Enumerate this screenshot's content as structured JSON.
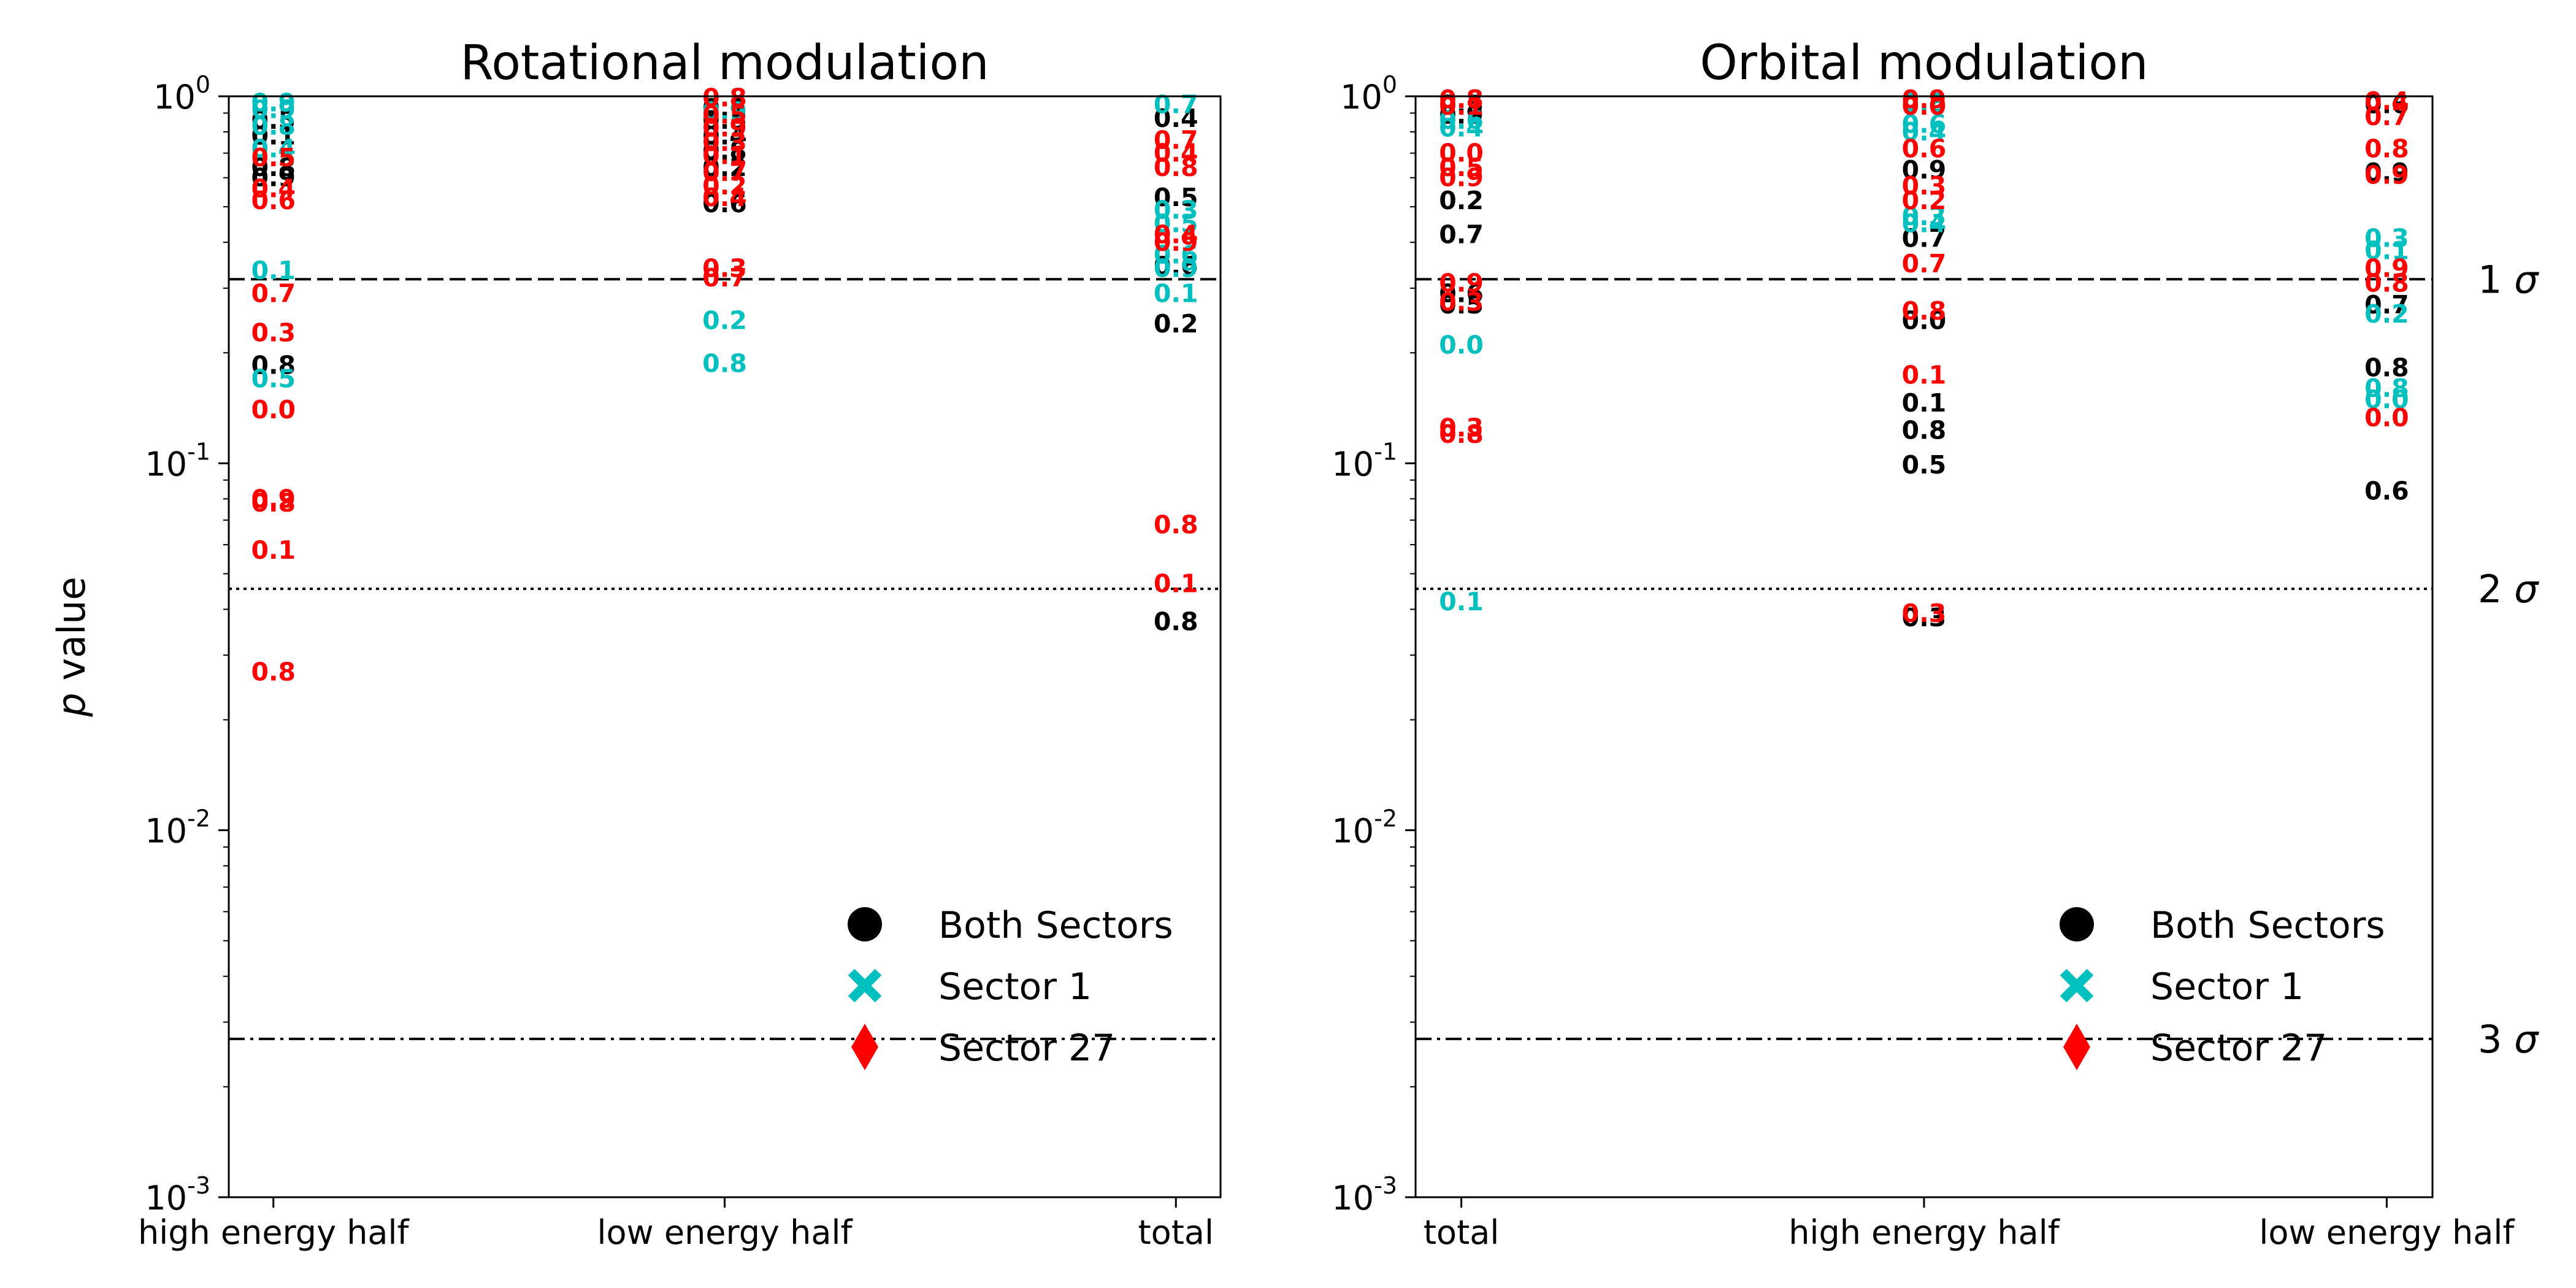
{
  "sigma_labels": [
    "1",
    "2",
    "3"
  ],
  "sigma_symbol": "σ",
  "legend": [
    {
      "label": "Both Sectors",
      "color": "#000000",
      "marker": "circle"
    },
    {
      "label": "Sector 1",
      "color": "#00bfbf",
      "marker": "x"
    },
    {
      "label": "Sector 27",
      "color": "#ff0000",
      "marker": "diamond"
    }
  ],
  "chart_data": [
    {
      "type": "scatter",
      "title": "Rotational modulation",
      "ylabel": "p value",
      "yscale": "log",
      "ylim": [
        0.001,
        1
      ],
      "y_tick_labels": [
        "10^0",
        "10^-1",
        "10^-2",
        "10^-3"
      ],
      "categories": [
        "high energy half",
        "low energy half",
        "total"
      ],
      "thresholds": [
        {
          "sigma": 1,
          "p": 0.3173,
          "style": "dashed"
        },
        {
          "sigma": 2,
          "p": 0.0455,
          "style": "dotted"
        },
        {
          "sigma": 3,
          "p": 0.0027,
          "style": "dashdot"
        }
      ],
      "legend_position": "lower right",
      "grid": false,
      "series": [
        {
          "name": "Both Sectors",
          "color": "#000000",
          "points": [
            [
              "high energy half",
              0.86,
              "0.5"
            ],
            [
              "high energy half",
              0.78,
              "0.1"
            ],
            [
              "high energy half",
              0.64,
              "0.8"
            ],
            [
              "high energy half",
              0.6,
              "0.9"
            ],
            [
              "high energy half",
              0.185,
              "0.8"
            ],
            [
              "low energy half",
              0.93,
              "0.1"
            ],
            [
              "low energy half",
              0.86,
              "0.5"
            ],
            [
              "low energy half",
              0.78,
              "0.4"
            ],
            [
              "low energy half",
              0.71,
              "0.8"
            ],
            [
              "low energy half",
              0.64,
              "0.2"
            ],
            [
              "low energy half",
              0.51,
              "0.6"
            ],
            [
              "total",
              0.87,
              "0.4"
            ],
            [
              "total",
              0.53,
              "0.5"
            ],
            [
              "total",
              0.345,
              "0.6"
            ],
            [
              "total",
              0.24,
              "0.2"
            ],
            [
              "total",
              0.037,
              "0.8"
            ]
          ]
        },
        {
          "name": "Sector 1",
          "color": "#00bfbf",
          "points": [
            [
              "high energy half",
              0.96,
              "0.9"
            ],
            [
              "high energy half",
              0.92,
              "0.9"
            ],
            [
              "high energy half",
              0.83,
              "0.8"
            ],
            [
              "high energy half",
              0.72,
              "0.4"
            ],
            [
              "high energy half",
              0.335,
              "0.1"
            ],
            [
              "high energy half",
              0.17,
              "0.5"
            ],
            [
              "low energy half",
              0.91,
              "0.9"
            ],
            [
              "low energy half",
              0.245,
              "0.2"
            ],
            [
              "low energy half",
              0.187,
              "0.8"
            ],
            [
              "total",
              0.95,
              "0.7"
            ],
            [
              "total",
              0.49,
              "0.3"
            ],
            [
              "total",
              0.45,
              "0.5"
            ],
            [
              "total",
              0.37,
              "0.6"
            ],
            [
              "total",
              0.34,
              "0.9"
            ],
            [
              "total",
              0.29,
              "0.1"
            ]
          ]
        },
        {
          "name": "Sector 27",
          "color": "#ff0000",
          "points": [
            [
              "high energy half",
              0.68,
              "0.5"
            ],
            [
              "high energy half",
              0.56,
              "0.4"
            ],
            [
              "high energy half",
              0.52,
              "0.6"
            ],
            [
              "high energy half",
              0.29,
              "0.7"
            ],
            [
              "high energy half",
              0.227,
              "0.3"
            ],
            [
              "high energy half",
              0.14,
              "0.0"
            ],
            [
              "high energy half",
              0.08,
              "0.9"
            ],
            [
              "high energy half",
              0.078,
              "0.8"
            ],
            [
              "high energy half",
              0.058,
              "0.1"
            ],
            [
              "high energy half",
              0.027,
              "0.8"
            ],
            [
              "low energy half",
              0.99,
              "0.8"
            ],
            [
              "low energy half",
              0.89,
              "0.5"
            ],
            [
              "low energy half",
              0.82,
              "0.9"
            ],
            [
              "low energy half",
              0.75,
              "0.3"
            ],
            [
              "low energy half",
              0.69,
              "0.1"
            ],
            [
              "low energy half",
              0.62,
              "0.7"
            ],
            [
              "low energy half",
              0.57,
              "0.2"
            ],
            [
              "low energy half",
              0.53,
              "0.4"
            ],
            [
              "low energy half",
              0.34,
              "0.3"
            ],
            [
              "low energy half",
              0.32,
              "0.7"
            ],
            [
              "total",
              0.76,
              "0.7"
            ],
            [
              "total",
              0.7,
              "0.4"
            ],
            [
              "total",
              0.64,
              "0.8"
            ],
            [
              "total",
              0.42,
              "0.4"
            ],
            [
              "total",
              0.4,
              "0.9"
            ],
            [
              "total",
              0.068,
              "0.8"
            ],
            [
              "total",
              0.047,
              "0.1"
            ]
          ]
        }
      ]
    },
    {
      "type": "scatter",
      "title": "Orbital modulation",
      "ylabel": "",
      "yscale": "log",
      "ylim": [
        0.001,
        1
      ],
      "y_tick_labels": [
        "10^0",
        "10^-1",
        "10^-2",
        "10^-3"
      ],
      "categories": [
        "total",
        "high energy half",
        "low energy half"
      ],
      "thresholds": [
        {
          "sigma": 1,
          "p": 0.3173,
          "style": "dashed"
        },
        {
          "sigma": 2,
          "p": 0.0455,
          "style": "dotted"
        },
        {
          "sigma": 3,
          "p": 0.0027,
          "style": "dashdot"
        }
      ],
      "legend_position": "lower right",
      "grid": false,
      "series": [
        {
          "name": "Both Sectors",
          "color": "#000000",
          "points": [
            [
              "total",
              0.95,
              "0.5"
            ],
            [
              "total",
              0.89,
              "0.9"
            ],
            [
              "total",
              0.52,
              "0.2"
            ],
            [
              "total",
              0.42,
              "0.7"
            ],
            [
              "total",
              0.29,
              "0.6"
            ],
            [
              "total",
              0.27,
              "0.5"
            ],
            [
              "high energy half",
              0.63,
              "0.9"
            ],
            [
              "high energy half",
              0.41,
              "0.7"
            ],
            [
              "high energy half",
              0.245,
              "0.0"
            ],
            [
              "high energy half",
              0.146,
              "0.1"
            ],
            [
              "high energy half",
              0.123,
              "0.8"
            ],
            [
              "high energy half",
              0.099,
              "0.5"
            ],
            [
              "high energy half",
              0.038,
              "0.3"
            ],
            [
              "low energy half",
              0.95,
              "0.6"
            ],
            [
              "low energy half",
              0.62,
              "0.9"
            ],
            [
              "low energy half",
              0.27,
              "0.7"
            ],
            [
              "low energy half",
              0.182,
              "0.8"
            ],
            [
              "low energy half",
              0.084,
              "0.6"
            ]
          ]
        },
        {
          "name": "Sector 1",
          "color": "#00bfbf",
          "points": [
            [
              "total",
              0.86,
              "0.6"
            ],
            [
              "total",
              0.82,
              "0.4"
            ],
            [
              "total",
              0.21,
              "0.0"
            ],
            [
              "total",
              0.042,
              "0.1"
            ],
            [
              "high energy half",
              0.96,
              "0.8"
            ],
            [
              "high energy half",
              0.84,
              "0.6"
            ],
            [
              "high energy half",
              0.8,
              "0.4"
            ],
            [
              "high energy half",
              0.47,
              "0.3"
            ],
            [
              "high energy half",
              0.45,
              "0.4"
            ],
            [
              "low energy half",
              0.41,
              "0.3"
            ],
            [
              "low energy half",
              0.38,
              "0.1"
            ],
            [
              "low energy half",
              0.255,
              "0.2"
            ],
            [
              "low energy half",
              0.16,
              "0.8"
            ],
            [
              "low energy half",
              0.149,
              "0.0"
            ]
          ]
        },
        {
          "name": "Sector 27",
          "color": "#ff0000",
          "points": [
            [
              "total",
              0.98,
              "0.8"
            ],
            [
              "total",
              0.94,
              "0.1"
            ],
            [
              "total",
              0.7,
              "0.0"
            ],
            [
              "total",
              0.64,
              "0.5"
            ],
            [
              "total",
              0.6,
              "0.9"
            ],
            [
              "total",
              0.31,
              "0.9"
            ],
            [
              "total",
              0.275,
              "0.3"
            ],
            [
              "total",
              0.125,
              "0.3"
            ],
            [
              "total",
              0.12,
              "0.8"
            ],
            [
              "high energy half",
              0.98,
              "0.9"
            ],
            [
              "high energy half",
              0.94,
              "0.0"
            ],
            [
              "high energy half",
              0.72,
              "0.6"
            ],
            [
              "high energy half",
              0.57,
              "0.3"
            ],
            [
              "high energy half",
              0.52,
              "0.2"
            ],
            [
              "high energy half",
              0.35,
              "0.7"
            ],
            [
              "high energy half",
              0.26,
              "0.8"
            ],
            [
              "high energy half",
              0.174,
              "0.1"
            ],
            [
              "high energy half",
              0.039,
              "0.3"
            ],
            [
              "low energy half",
              0.97,
              "0.4"
            ],
            [
              "low energy half",
              0.88,
              "0.7"
            ],
            [
              "low energy half",
              0.72,
              "0.8"
            ],
            [
              "low energy half",
              0.61,
              "0.9"
            ],
            [
              "low energy half",
              0.34,
              "0.9"
            ],
            [
              "low energy half",
              0.31,
              "0.8"
            ],
            [
              "low energy half",
              0.133,
              "0.0"
            ]
          ]
        }
      ]
    }
  ]
}
